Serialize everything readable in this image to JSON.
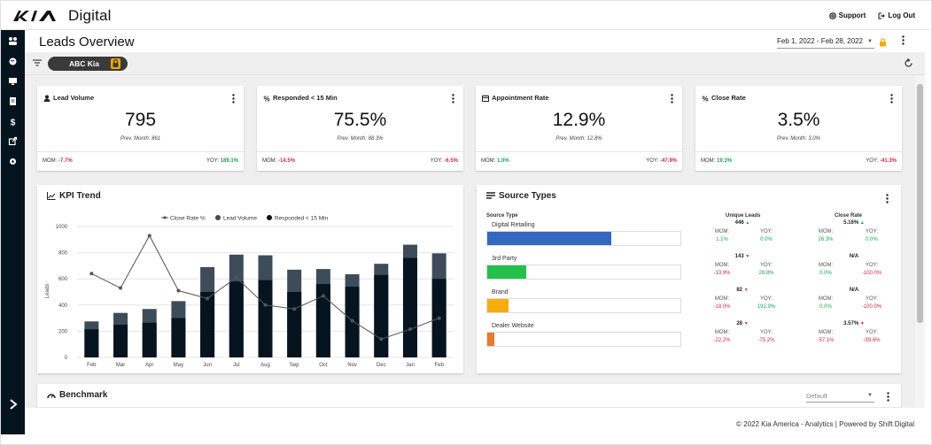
{
  "header": {
    "brand_text": "Digital",
    "support_label": "Support",
    "logout_label": "Log Out"
  },
  "page": {
    "title": "Leads Overview",
    "date_range": "Feb 1, 2022 - Feb 28, 2022",
    "dealer_chip": "ABC Kia"
  },
  "kpis": [
    {
      "title": "Lead Volume",
      "icon": "person-icon",
      "value": "795",
      "prev": "Prev. Month: 861",
      "mom_label": "MOM:",
      "mom": "-7.7%",
      "mom_trend": "neg",
      "yoy_label": "YOY:",
      "yoy": "189.1%",
      "yoy_trend": "pos"
    },
    {
      "title": "Responded < 15 Min",
      "icon": "percent-icon",
      "value": "75.5%",
      "prev": "Prev. Month: 88.3%",
      "mom_label": "MOM:",
      "mom": "-14.5%",
      "mom_trend": "neg",
      "yoy_label": "YOY:",
      "yoy": "-6.5%",
      "yoy_trend": "neg"
    },
    {
      "title": "Appointment Rate",
      "icon": "calendar-icon",
      "value": "12.9%",
      "prev": "Prev. Month: 12.8%",
      "mom_label": "MOM:",
      "mom": "1.0%",
      "mom_trend": "pos",
      "yoy_label": "YOY:",
      "yoy": "-47.9%",
      "yoy_trend": "neg"
    },
    {
      "title": "Close Rate",
      "icon": "percent-icon",
      "value": "3.5%",
      "prev": "Prev. Month: 3.0%",
      "mom_label": "MOM:",
      "mom": "19.3%",
      "mom_trend": "pos",
      "yoy_label": "YOY:",
      "yoy": "-41.3%",
      "yoy_trend": "neg"
    }
  ],
  "kpi_trend": {
    "title": "KPI Trend",
    "legend": [
      "Close Rate %",
      "Lead Volume",
      "Responded < 15 Min"
    ]
  },
  "chart_data": {
    "type": "bar",
    "title": "KPI Trend",
    "categories": [
      "Feb",
      "Mar",
      "Apr",
      "May",
      "Jun",
      "Jul",
      "Aug",
      "Sep",
      "Oct",
      "Nov",
      "Dec",
      "Jan",
      "Feb"
    ],
    "ylabel": "Leads",
    "ylim": [
      0,
      1000
    ],
    "yticks": [
      0,
      200,
      400,
      600,
      800,
      1000
    ],
    "grid": true,
    "legend_position": "top",
    "series": [
      {
        "name": "Lead Volume",
        "kind": "bar",
        "color": "#3e4b58",
        "values": [
          275,
          340,
          370,
          430,
          690,
          785,
          780,
          670,
          675,
          635,
          715,
          861,
          795
        ]
      },
      {
        "name": "Responded < 15 Min",
        "kind": "bar",
        "color": "#05141f",
        "values": [
          215,
          250,
          265,
          300,
          500,
          580,
          590,
          500,
          560,
          540,
          630,
          760,
          600
        ]
      },
      {
        "name": "Close Rate %",
        "kind": "line",
        "color": "#555555",
        "values": [
          640,
          530,
          930,
          510,
          450,
          610,
          400,
          370,
          470,
          280,
          140,
          215,
          300
        ]
      }
    ]
  },
  "source_types": {
    "title": "Source Types",
    "col_source": "Source Type",
    "col_unique": "Unique Leads",
    "col_close": "Close Rate",
    "rows": [
      {
        "name": "Digital Retailing",
        "share": 0.64,
        "color": "#3367c0",
        "leads": "446",
        "leads_trend": "up",
        "leads_mom": "1.1%",
        "leads_mom_trend": "pos",
        "leads_yoy": "0.0%",
        "leads_yoy_trend": "pos",
        "close": "5.16%",
        "close_trend": "up",
        "close_mom": "26.3%",
        "close_mom_trend": "pos",
        "close_yoy": "0.0%",
        "close_yoy_trend": "pos"
      },
      {
        "name": "3rd Party",
        "share": 0.2,
        "color": "#23c14a",
        "leads": "143",
        "leads_trend": "down",
        "leads_mom": "-13.9%",
        "leads_mom_trend": "neg",
        "leads_yoy": "28.8%",
        "leads_yoy_trend": "pos",
        "close": "N/A",
        "close_trend": "",
        "close_mom": "0.0%",
        "close_mom_trend": "pos",
        "close_yoy": "-100.0%",
        "close_yoy_trend": "neg"
      },
      {
        "name": "Brand",
        "share": 0.11,
        "color": "#f6ad0f",
        "leads": "82",
        "leads_trend": "down",
        "leads_mom": "-18.0%",
        "leads_mom_trend": "neg",
        "leads_yoy": "192.9%",
        "leads_yoy_trend": "pos",
        "close": "N/A",
        "close_trend": "",
        "close_mom": "0.0%",
        "close_mom_trend": "pos",
        "close_yoy": "-100.0%",
        "close_yoy_trend": "neg"
      },
      {
        "name": "Dealer Website",
        "share": 0.035,
        "color": "#e87a2e",
        "leads": "28",
        "leads_trend": "down",
        "leads_mom": "-22.2%",
        "leads_mom_trend": "neg",
        "leads_yoy": "-75.2%",
        "leads_yoy_trend": "neg",
        "close": "3.57%",
        "close_trend": "down",
        "close_mom": "-57.1%",
        "close_mom_trend": "neg",
        "close_yoy": "-59.6%",
        "close_yoy_trend": "neg"
      }
    ],
    "mom_label": "MOM:",
    "yoy_label": "YOY:"
  },
  "benchmark": {
    "title": "Benchmark",
    "select_value": "Default"
  },
  "footer": {
    "text": "© 2022 Kia America - Analytics | Powered by Shift Digital"
  },
  "colors": {
    "rail": "#05141f",
    "accent_lock": "#f2a900",
    "positive": "#1aa64b",
    "negative": "#d42a3c"
  }
}
